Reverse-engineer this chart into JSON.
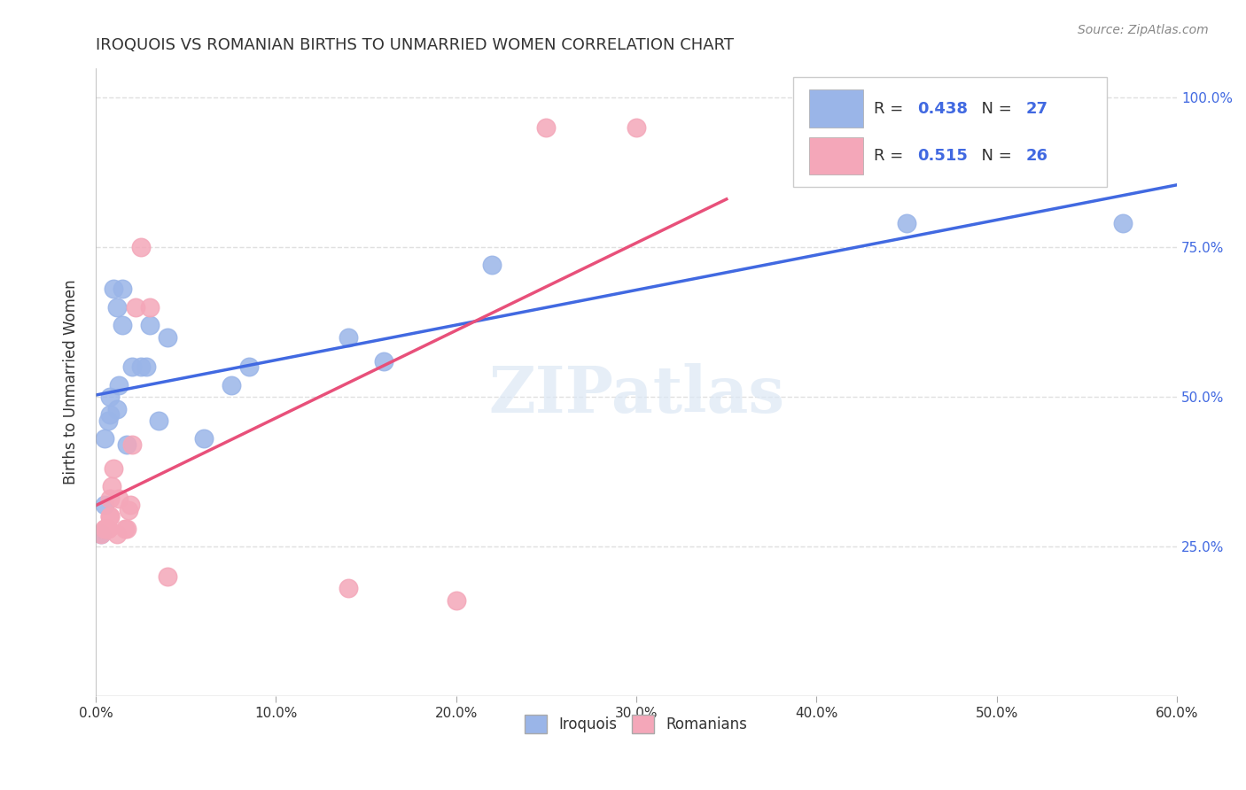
{
  "title": "IROQUOIS VS ROMANIAN BIRTHS TO UNMARRIED WOMEN CORRELATION CHART",
  "source": "Source: ZipAtlas.com",
  "xlabel": "",
  "ylabel": "Births to Unmarried Women",
  "xlim": [
    0.0,
    0.6
  ],
  "ylim": [
    0.0,
    1.05
  ],
  "xtick_labels": [
    "0.0%",
    "10.0%",
    "20.0%",
    "30.0%",
    "40.0%",
    "50.0%",
    "60.0%"
  ],
  "xtick_values": [
    0.0,
    0.1,
    0.2,
    0.3,
    0.4,
    0.5,
    0.6
  ],
  "ytick_labels": [
    "25.0%",
    "50.0%",
    "75.0%",
    "100.0%"
  ],
  "ytick_values": [
    0.25,
    0.5,
    0.75,
    1.0
  ],
  "iroquois_color": "#9ab5e8",
  "romanian_color": "#f4a7b9",
  "iroquois_line_color": "#4169e1",
  "romanian_line_color": "#e8507a",
  "iroquois_R": "0.438",
  "iroquois_N": "27",
  "romanian_R": "0.515",
  "romanian_N": "26",
  "watermark": "ZIPatlas",
  "iroquois_x": [
    0.003,
    0.005,
    0.005,
    0.007,
    0.008,
    0.008,
    0.01,
    0.012,
    0.012,
    0.013,
    0.015,
    0.015,
    0.017,
    0.02,
    0.025,
    0.028,
    0.03,
    0.035,
    0.04,
    0.06,
    0.075,
    0.085,
    0.14,
    0.16,
    0.22,
    0.45,
    0.57
  ],
  "iroquois_y": [
    0.27,
    0.32,
    0.43,
    0.46,
    0.5,
    0.47,
    0.68,
    0.48,
    0.65,
    0.52,
    0.68,
    0.62,
    0.42,
    0.55,
    0.55,
    0.55,
    0.62,
    0.46,
    0.6,
    0.43,
    0.52,
    0.55,
    0.6,
    0.56,
    0.72,
    0.79,
    0.79
  ],
  "romanian_x": [
    0.003,
    0.005,
    0.005,
    0.006,
    0.007,
    0.007,
    0.008,
    0.008,
    0.008,
    0.009,
    0.01,
    0.012,
    0.013,
    0.016,
    0.017,
    0.018,
    0.019,
    0.02,
    0.022,
    0.025,
    0.03,
    0.04,
    0.14,
    0.2,
    0.25,
    0.3
  ],
  "romanian_y": [
    0.27,
    0.28,
    0.28,
    0.28,
    0.28,
    0.28,
    0.3,
    0.3,
    0.33,
    0.35,
    0.38,
    0.27,
    0.33,
    0.28,
    0.28,
    0.31,
    0.32,
    0.42,
    0.65,
    0.75,
    0.65,
    0.2,
    0.18,
    0.16,
    0.95,
    0.95
  ],
  "background_color": "#ffffff",
  "grid_color": "#e0e0e0"
}
